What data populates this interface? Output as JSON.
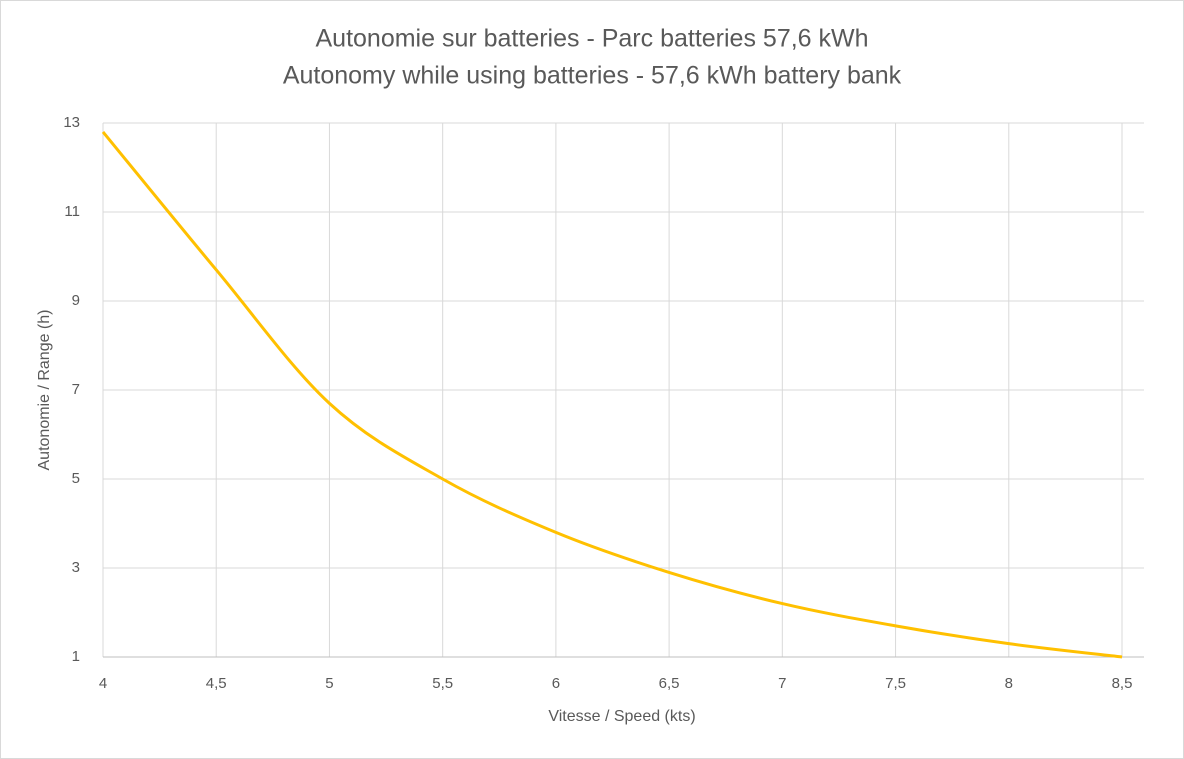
{
  "chart_data": {
    "type": "line",
    "title": "Autonomie sur batteries - Parc batteries 57,6 kWh",
    "subtitle": "Autonomy while using batteries - 57,6 kWh battery bank",
    "x_label": "Vitesse / Speed (kts)",
    "y_label": "Autonomie / Range (h)",
    "x": [
      4,
      4.5,
      5,
      5.5,
      6,
      6.5,
      7,
      7.5,
      8,
      8.5
    ],
    "series": [
      {
        "name": "Autonomie",
        "color": "#ffc000",
        "values": [
          12.8,
          9.7,
          6.7,
          5.0,
          3.8,
          2.9,
          2.2,
          1.7,
          1.3,
          1.0
        ]
      }
    ],
    "xlim": [
      4,
      8.5
    ],
    "xticks": [
      4,
      {
        "value": 4.5,
        "label": "4,5"
      },
      5,
      {
        "value": 5.5,
        "label": "5,5"
      },
      6,
      {
        "value": 6.5,
        "label": "6,5"
      },
      7,
      {
        "value": 7.5,
        "label": "7,5"
      },
      8,
      {
        "value": 8.5,
        "label": "8,5"
      }
    ],
    "ylim": [
      1,
      13
    ],
    "yticks": [
      1,
      3,
      5,
      7,
      9,
      11,
      13
    ],
    "grid": true
  }
}
